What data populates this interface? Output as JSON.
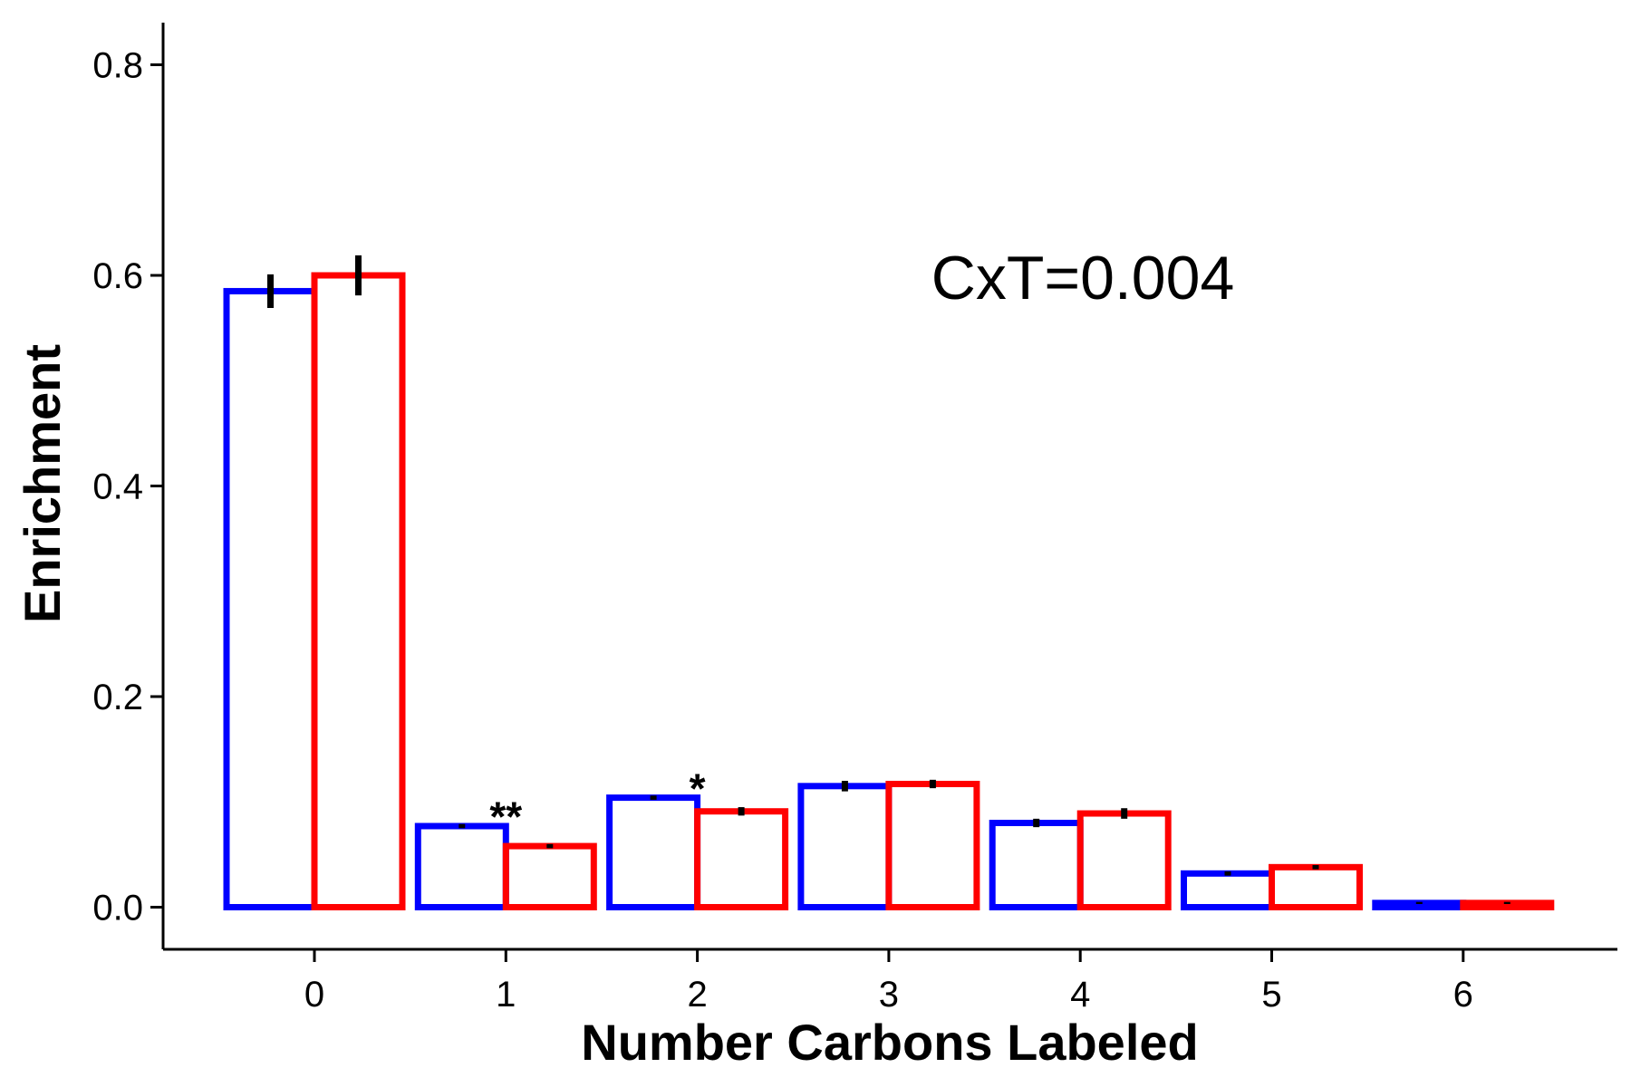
{
  "chart_data": {
    "type": "bar",
    "xlabel": "Number Carbons Labeled",
    "ylabel": "Enrichment",
    "categories": [
      "0",
      "1",
      "2",
      "3",
      "4",
      "5",
      "6"
    ],
    "ylim": [
      -0.04,
      0.84
    ],
    "yticks": [
      "0.0",
      "0.2",
      "0.4",
      "0.6",
      "0.8"
    ],
    "series": [
      {
        "color": "#0000ff",
        "values": [
          0.585,
          0.077,
          0.104,
          0.115,
          0.08,
          0.032,
          0.004
        ],
        "errors": [
          0.016,
          0.002,
          0.002,
          0.005,
          0.004,
          0.002,
          0.001
        ]
      },
      {
        "color": "#ff0000",
        "values": [
          0.6,
          0.058,
          0.091,
          0.117,
          0.089,
          0.038,
          0.004
        ],
        "errors": [
          0.019,
          0.002,
          0.004,
          0.004,
          0.005,
          0.002,
          0.001
        ]
      }
    ],
    "significance": [
      {
        "category": "1",
        "label": "**"
      },
      {
        "category": "2",
        "label": "*"
      }
    ],
    "annotation": "CxT=0.004",
    "grid": false,
    "legend": "none"
  }
}
